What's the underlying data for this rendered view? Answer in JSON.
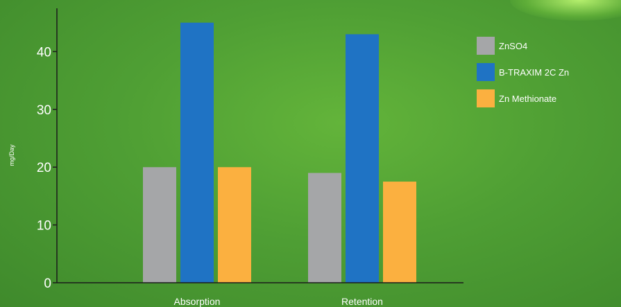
{
  "chart_data": {
    "type": "bar",
    "title": "",
    "xlabel": "",
    "ylabel": "mg/Day",
    "categories": [
      "Absorption",
      "Retention"
    ],
    "series": [
      {
        "name": "ZnSO4",
        "values": [
          20,
          19
        ],
        "color": "#a5a6a8"
      },
      {
        "name": "B-TRAXIM 2C Zn",
        "values": [
          45,
          43
        ],
        "color": "#1f73c4"
      },
      {
        "name": "Zn Methionate",
        "values": [
          20,
          17.5
        ],
        "color": "#fbb040"
      }
    ],
    "ylim": [
      0,
      47
    ],
    "yticks": [
      0,
      10,
      20,
      30,
      40
    ],
    "grid": false,
    "legend": "top-right"
  }
}
